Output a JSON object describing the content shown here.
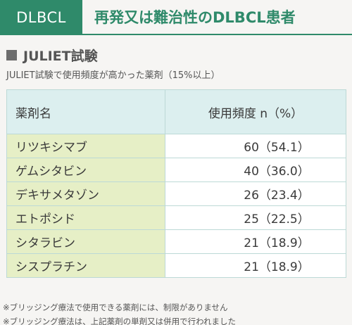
{
  "header": {
    "tag": "DLBCL",
    "title": "再発又は難治性のDLBCL患者"
  },
  "section": {
    "heading": "JULIET試験",
    "subtitle": "JULIET試験で使用頻度が高かった薬剤（15%以上）"
  },
  "table": {
    "columns": [
      "薬剤名",
      "使用頻度 n（%）"
    ],
    "rows": [
      {
        "drug": "リツキシマブ",
        "freq": "60（54.1）"
      },
      {
        "drug": "ゲムシタビン",
        "freq": "40（36.0）"
      },
      {
        "drug": "デキサメタゾン",
        "freq": "26（23.4）"
      },
      {
        "drug": "エトポシド",
        "freq": "25（22.5）"
      },
      {
        "drug": "シタラビン",
        "freq": "21（18.9）"
      },
      {
        "drug": "シスプラチン",
        "freq": "21（18.9）"
      }
    ]
  },
  "footnotes": [
    "※ブリッジング療法で使用できる薬剤には、制限がありません",
    "※ブリッジング療法は、上記薬剤の単剤又は併用で行われました"
  ],
  "colors": {
    "accent": "#2f8a6a",
    "header_row": "#dcefef",
    "drug_cell": "#e6efc6"
  }
}
